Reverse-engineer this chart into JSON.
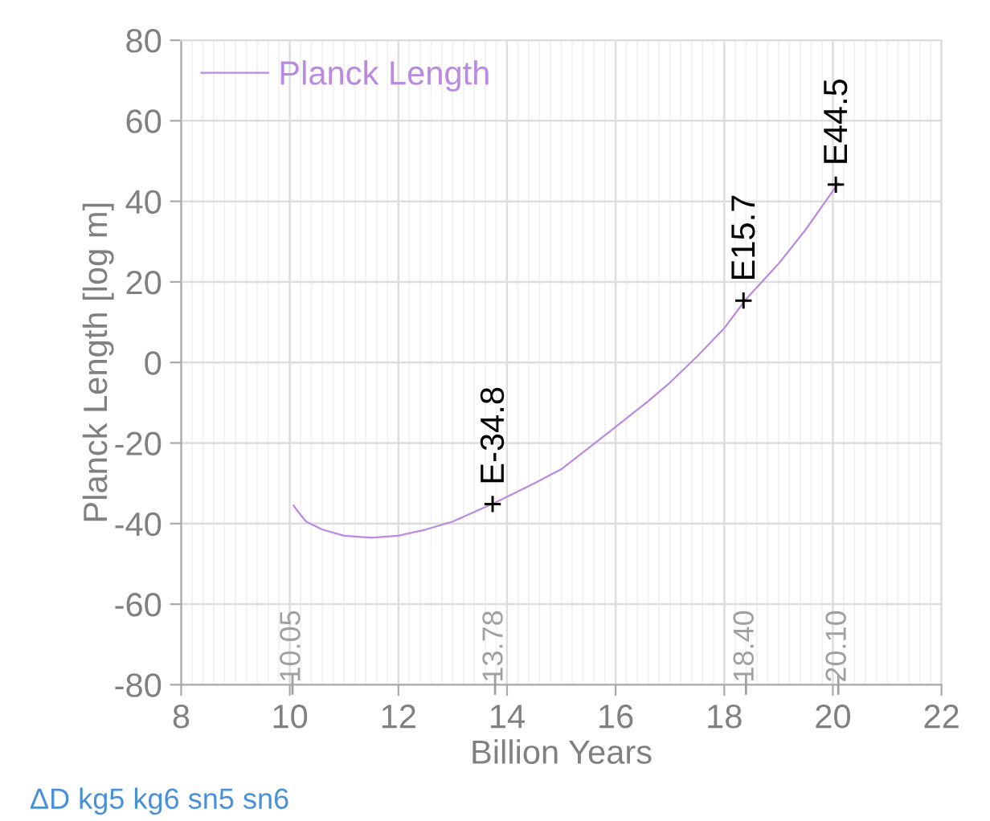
{
  "chart_data": {
    "type": "line",
    "xlabel": "Billion Years",
    "ylabel": "Planck Length [log m]",
    "series": [
      {
        "name": "Planck Length",
        "color": "#b98ae0",
        "x": [
          10.07,
          10.15,
          10.3,
          10.6,
          11,
          11.5,
          12,
          12.5,
          13,
          13.78,
          14.5,
          15,
          16,
          16.6,
          17,
          17.5,
          18,
          18.4,
          19,
          19.5,
          20.1
        ],
        "values": [
          -35.5,
          -37,
          -39.5,
          -41.5,
          -43,
          -43.5,
          -43,
          -41.5,
          -39.5,
          -34.8,
          -30,
          -26.5,
          -16,
          -9.6,
          -5,
          1.5,
          8.5,
          15.7,
          24.5,
          33,
          44.5
        ]
      }
    ],
    "x2lim": [
      8,
      22
    ],
    "x2ticks": [
      10.05,
      13.78,
      {
        "value": 18.4,
        "label": "18.40"
      },
      {
        "value": 20.1,
        "label": "20.10"
      }
    ],
    "xlim": [
      8,
      22
    ],
    "xticks": [
      8,
      10,
      12,
      14,
      16,
      18,
      20,
      22
    ],
    "ylim": [
      -80,
      80
    ],
    "yticks": [
      -80,
      -60,
      -40,
      -20,
      0,
      20,
      40,
      60,
      80
    ],
    "grid": true,
    "legend": "top left",
    "marker": "none",
    "line_style": "solid",
    "annotations": [
      {
        "text": "+ E-34.8",
        "x": 13.78,
        "y": -34.8
      },
      {
        "text": "+ E15.7",
        "x": 18.4,
        "y": 15.7
      },
      {
        "text": "+ E44.5",
        "x": 20.1,
        "y": 44.5
      },
      "ΔD kg5 kg6 sn5 sn6"
    ]
  }
}
